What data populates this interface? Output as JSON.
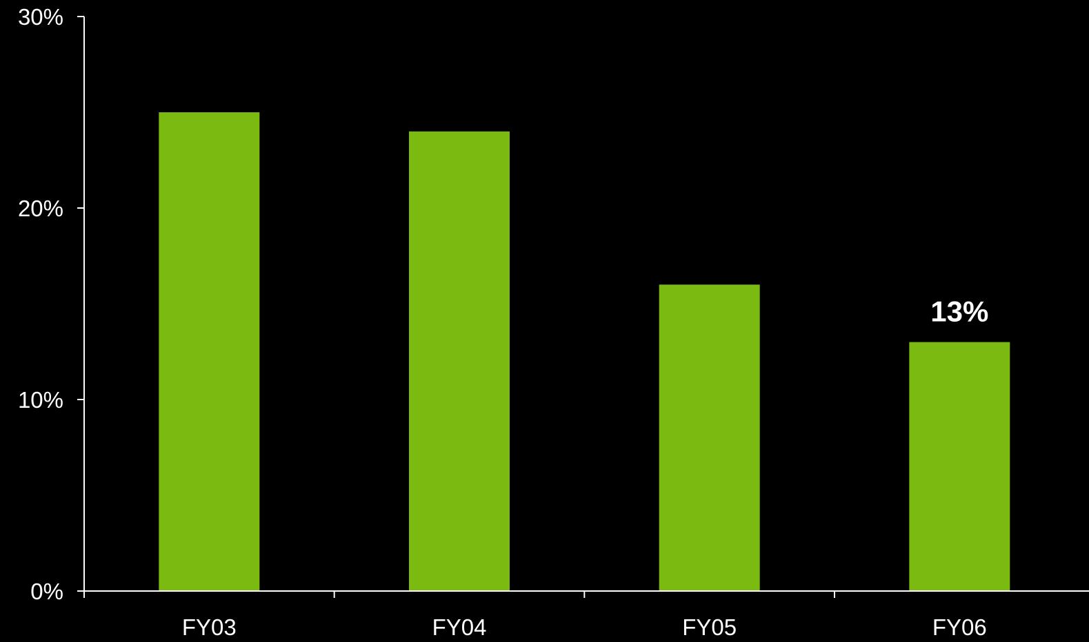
{
  "chart_data": {
    "type": "bar",
    "categories": [
      "FY03",
      "FY04",
      "FY05",
      "FY06"
    ],
    "values": [
      25,
      24,
      16,
      13
    ],
    "value_unit": "%",
    "ylim": [
      0,
      30
    ],
    "y_ticks": [
      "0%",
      "10%",
      "20%",
      "30%"
    ],
    "y_tick_values": [
      0,
      10,
      20,
      30
    ],
    "data_labels": [
      {
        "category": "FY06",
        "text": "13%"
      }
    ],
    "title": "",
    "xlabel": "",
    "ylabel": "",
    "grid": false,
    "legend": "none",
    "colors": {
      "background": "#000000",
      "bar": "#7aba11",
      "axis": "#ffffff",
      "text": "#ffffff"
    }
  }
}
